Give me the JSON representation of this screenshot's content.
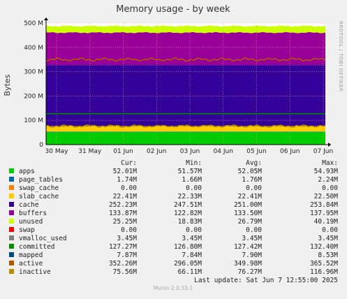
{
  "chart_data": {
    "type": "area",
    "title": "Memory usage - by week",
    "ylabel": "Bytes",
    "ylim": [
      0,
      500
    ],
    "y_ticks": [
      {
        "value": 0,
        "label": "0"
      },
      {
        "value": 100,
        "label": "100 M"
      },
      {
        "value": 200,
        "label": "200 M"
      },
      {
        "value": 300,
        "label": "300 M"
      },
      {
        "value": 400,
        "label": "400 M"
      },
      {
        "value": 500,
        "label": "500 M"
      }
    ],
    "x_ticks": [
      "30 May",
      "31 May",
      "01 Jun",
      "02 Jun",
      "03 Jun",
      "04 Jun",
      "05 Jun",
      "06 Jun",
      "07 Jun"
    ],
    "grid": true,
    "stack_series": [
      {
        "name": "apps",
        "color": "#00cc00",
        "value": 52.05
      },
      {
        "name": "page_tables",
        "color": "#0066b3",
        "value": 1.76
      },
      {
        "name": "swap_cache",
        "color": "#ff8000",
        "value": 0.0
      },
      {
        "name": "slab_cache",
        "color": "#ffcc00",
        "value": 22.41
      },
      {
        "name": "cache",
        "color": "#330099",
        "value": 251.0
      },
      {
        "name": "buffers",
        "color": "#990099",
        "value": 133.5
      },
      {
        "name": "unused",
        "color": "#ccff00",
        "value": 26.79
      }
    ],
    "line_series": [
      {
        "name": "committed",
        "color": "#008f00",
        "value": 127.42
      },
      {
        "name": "active",
        "color": "#b35a00",
        "value": 349.98
      },
      {
        "name": "inactive",
        "color": "#b38f00",
        "value": 76.27
      }
    ],
    "legend": {
      "headers": [
        "Cur:",
        "Min:",
        "Avg:",
        "Max:"
      ],
      "rows": [
        {
          "name": "apps",
          "color": "#00cc00",
          "cur": "52.01M",
          "min": "51.57M",
          "avg": "52.05M",
          "max": "54.93M"
        },
        {
          "name": "page_tables",
          "color": "#0066b3",
          "cur": "1.74M",
          "min": "1.66M",
          "avg": "1.76M",
          "max": "2.24M"
        },
        {
          "name": "swap_cache",
          "color": "#ff8000",
          "cur": "0.00",
          "min": "0.00",
          "avg": "0.00",
          "max": "0.00"
        },
        {
          "name": "slab_cache",
          "color": "#ffcc00",
          "cur": "22.41M",
          "min": "22.33M",
          "avg": "22.41M",
          "max": "22.50M"
        },
        {
          "name": "cache",
          "color": "#330099",
          "cur": "252.23M",
          "min": "247.51M",
          "avg": "251.00M",
          "max": "253.84M"
        },
        {
          "name": "buffers",
          "color": "#990099",
          "cur": "133.87M",
          "min": "122.82M",
          "avg": "133.50M",
          "max": "137.95M"
        },
        {
          "name": "unused",
          "color": "#ccff00",
          "cur": "25.25M",
          "min": "18.83M",
          "avg": "26.79M",
          "max": "40.19M"
        },
        {
          "name": "swap",
          "color": "#ff0000",
          "cur": "0.00",
          "min": "0.00",
          "avg": "0.00",
          "max": "0.00"
        },
        {
          "name": "vmalloc_used",
          "color": "#808080",
          "cur": "3.45M",
          "min": "3.45M",
          "avg": "3.45M",
          "max": "3.45M"
        },
        {
          "name": "committed",
          "color": "#008f00",
          "cur": "127.27M",
          "min": "126.80M",
          "avg": "127.42M",
          "max": "132.40M"
        },
        {
          "name": "mapped",
          "color": "#00487d",
          "cur": "7.87M",
          "min": "7.84M",
          "avg": "7.90M",
          "max": "8.53M"
        },
        {
          "name": "active",
          "color": "#b35a00",
          "cur": "352.26M",
          "min": "296.05M",
          "avg": "349.98M",
          "max": "365.52M"
        },
        {
          "name": "inactive",
          "color": "#b38f00",
          "cur": "75.56M",
          "min": "66.11M",
          "avg": "76.27M",
          "max": "116.96M"
        }
      ]
    }
  },
  "last_update": "Last update:  Sat Jun  7 12:55:00 2025",
  "side_label": "RRDTOOL / TOBI OETIKER",
  "footer": "Munin 2.0.33-1"
}
